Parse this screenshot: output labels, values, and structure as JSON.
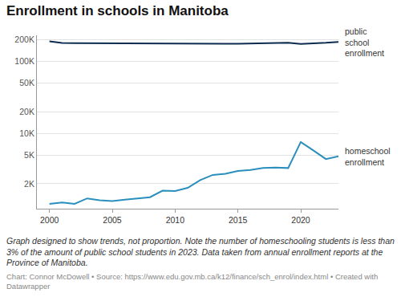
{
  "chart_data": {
    "type": "line",
    "title": "Enrollment in schools in Manitoba",
    "caption": "Graph designed to show trends, not proportion. Note the number of homeschooling students is less than 3% of the amount of public school students in 2023. Data taken from annual enrollment reports at the Province of Manitoba.",
    "source": "Chart: Connor McDowell • Source: https://www.edu.gov.mb.ca/k12/finance/sch_enrol/index.html • Created with Datawrapper",
    "x": [
      2000,
      2001,
      2002,
      2003,
      2004,
      2005,
      2006,
      2007,
      2008,
      2009,
      2010,
      2011,
      2012,
      2013,
      2014,
      2015,
      2016,
      2017,
      2018,
      2019,
      2020,
      2021,
      2022,
      2023
    ],
    "series": [
      {
        "name": "public school enrollment",
        "color": "#0d2b4e",
        "values": [
          190000,
          180000,
          179000,
          178500,
          178000,
          177500,
          176500,
          176000,
          175500,
          175000,
          175000,
          174500,
          174500,
          175000,
          175500,
          176000,
          177500,
          179000,
          180500,
          181500,
          175000,
          177000,
          181000,
          186000
        ]
      },
      {
        "name": "homeschool enrollment",
        "color": "#2a8fbd",
        "values": [
          1050,
          1100,
          1050,
          1250,
          1180,
          1150,
          1200,
          1250,
          1300,
          1600,
          1580,
          1750,
          2250,
          2650,
          2750,
          3000,
          3100,
          3300,
          3350,
          3300,
          7600,
          5800,
          4400,
          4800
        ]
      }
    ],
    "xlim": [
      1999,
      2023
    ],
    "xticks": [
      2000,
      2005,
      2010,
      2015,
      2020
    ],
    "ylim": [
      900,
      230000
    ],
    "yticks": [
      {
        "value": 2000,
        "label": "2K"
      },
      {
        "value": 5000,
        "label": "5K"
      },
      {
        "value": 10000,
        "label": "10K"
      },
      {
        "value": 20000,
        "label": "20K"
      },
      {
        "value": 50000,
        "label": "50K"
      },
      {
        "value": 100000,
        "label": "100K"
      },
      {
        "value": 200000,
        "label": "200K"
      }
    ],
    "log": "y",
    "grid": true
  }
}
